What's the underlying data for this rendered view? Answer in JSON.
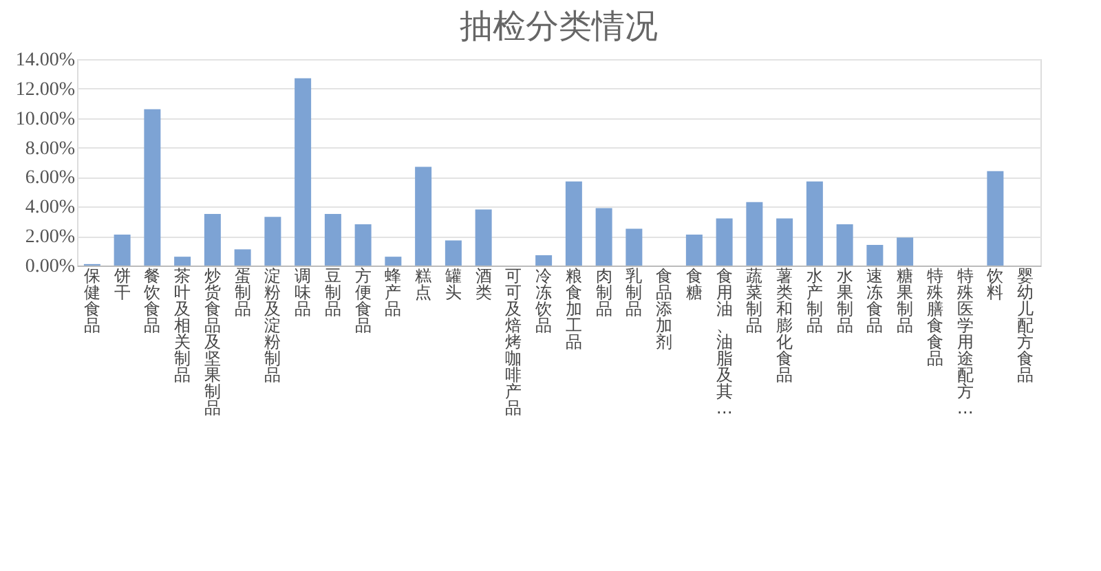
{
  "chart_data": {
    "type": "bar",
    "title": "抽检分类情况",
    "categories": [
      "保健食品",
      "饼干",
      "餐饮食品",
      "茶叶及相关制品",
      "炒货食品及坚果制品",
      "蛋制品",
      "淀粉及淀粉制品",
      "调味品",
      "豆制品",
      "方便食品",
      "蜂产品",
      "糕点",
      "罐头",
      "酒类",
      "可可及焙烤咖啡产品",
      "冷冻饮品",
      "粮食加工品",
      "肉制品",
      "乳制品",
      "食品添加剂",
      "食糖",
      "食用油、油脂及其…",
      "蔬菜制品",
      "薯类和膨化食品",
      "水产制品",
      "水果制品",
      "速冻食品",
      "糖果制品",
      "特殊膳食食品",
      "特殊医学用途配方…",
      "饮料",
      "婴幼儿配方食品"
    ],
    "values": [
      0.1,
      2.1,
      10.6,
      0.6,
      3.5,
      1.1,
      3.3,
      12.7,
      3.5,
      2.8,
      0.6,
      6.7,
      1.7,
      3.8,
      0,
      0.7,
      5.7,
      3.9,
      2.5,
      0,
      2.1,
      3.2,
      4.3,
      3.2,
      5.7,
      2.8,
      1.4,
      1.9,
      0,
      0,
      6.4,
      0
    ],
    "color": "#7da3d4",
    "ylim": [
      0,
      14
    ],
    "yticks": [
      {
        "value": 0,
        "label": "0.00%"
      },
      {
        "value": 2,
        "label": "2.00%"
      },
      {
        "value": 4,
        "label": "4.00%"
      },
      {
        "value": 6,
        "label": "6.00%"
      },
      {
        "value": 8,
        "label": "8.00%"
      },
      {
        "value": 10,
        "label": "10.00%"
      },
      {
        "value": 12,
        "label": "12.00%"
      },
      {
        "value": 14,
        "label": "14.00%"
      }
    ],
    "grid": "y"
  }
}
